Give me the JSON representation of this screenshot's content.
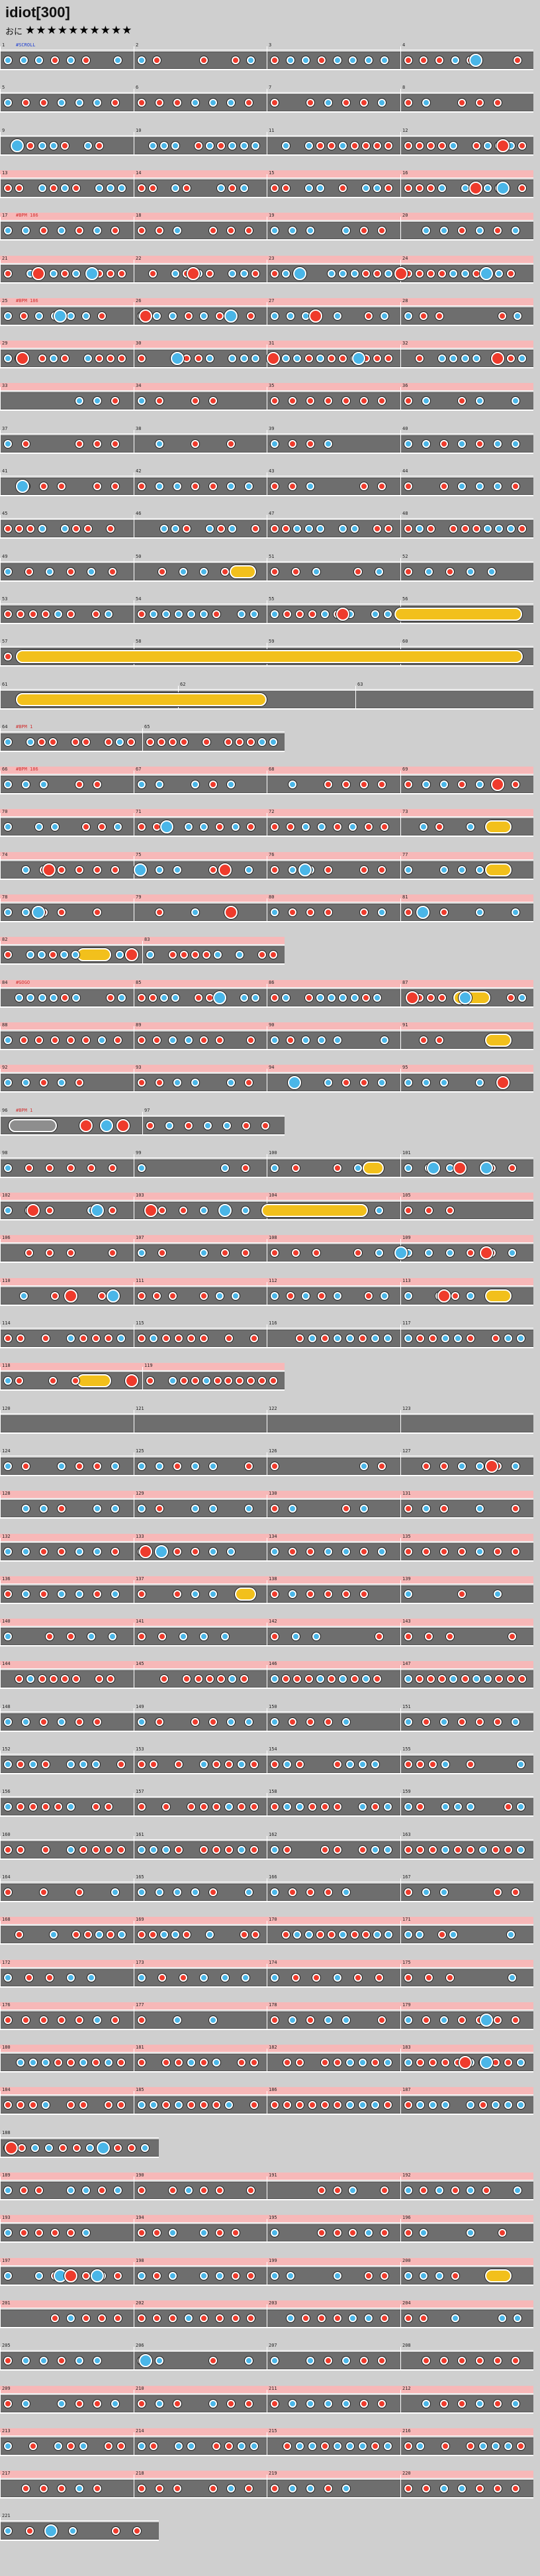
{
  "header": {
    "title": "idiot[300]",
    "difficulty_label": "おに",
    "stars": "★★★★★★★★★★"
  },
  "colors": {
    "background": "#cfcfcf",
    "lane": "#6e6e6e",
    "pink_band": "#f7b8b8",
    "don": "#ef3b2c",
    "ka": "#4ab6e8",
    "drumroll": "#f2c01c"
  },
  "icons": {
    "don_note": "red-circle",
    "ka_note": "blue-circle",
    "drumroll": "yellow-bar",
    "balloon": "grey-bar"
  },
  "chart_data": {
    "type": "taiko-score",
    "measures_per_full_row": 4,
    "rows": [
      {
        "measures": [
          1,
          2,
          3,
          4
        ],
        "pink": false,
        "annot": "#SCROLL",
        "annot_color": "blue",
        "big_at": [
          0.88
        ]
      },
      {
        "measures": [
          5,
          6,
          7,
          8
        ],
        "pink": false
      },
      {
        "measures": [
          9,
          10,
          11,
          12
        ],
        "pink": false,
        "big_at": [
          0.02,
          0.93
        ]
      },
      {
        "measures": [
          13,
          14,
          15,
          16
        ],
        "pink": true,
        "big_at": [
          0.88,
          0.93
        ]
      },
      {
        "measures": [
          17,
          18,
          19,
          20
        ],
        "pink": true,
        "annot": "#BPM 186"
      },
      {
        "measures": [
          21,
          22,
          23,
          24
        ],
        "pink": true,
        "big_at": [
          0.06,
          0.16,
          0.35,
          0.55,
          0.74,
          0.9
        ]
      },
      {
        "measures": [
          25,
          26,
          27,
          28
        ],
        "pink": true,
        "annot": "#BPM 186",
        "big_at": [
          0.1,
          0.26,
          0.42,
          0.58
        ]
      },
      {
        "measures": [
          29,
          30,
          31,
          32
        ],
        "pink": true,
        "big_at": [
          0.03,
          0.32,
          0.5,
          0.66,
          0.92
        ]
      },
      {
        "measures": [
          33,
          34,
          35,
          36
        ],
        "pink": true
      },
      {
        "measures": [
          37,
          38,
          39,
          40
        ],
        "pink": false
      },
      {
        "measures": [
          41,
          42,
          43,
          44
        ],
        "pink": false,
        "big_at": [
          0.03
        ]
      },
      {
        "measures": [
          45,
          46,
          47,
          48
        ],
        "pink": false
      },
      {
        "measures": [
          49,
          50,
          51,
          52
        ],
        "pink": false,
        "rolls": [
          [
            0.43,
            0.48
          ]
        ]
      },
      {
        "measures": [
          53,
          54,
          55,
          56
        ],
        "pink": false,
        "big_at": [
          0.63
        ],
        "rolls": [
          [
            0.74,
            0.98
          ]
        ]
      },
      {
        "measures": [
          57,
          58,
          59,
          60
        ],
        "pink": false,
        "rolls": [
          [
            0.03,
            0.98
          ]
        ]
      },
      {
        "measures": [
          61,
          62,
          63
        ],
        "pink": false,
        "annot2": "#SCROLL",
        "rolls": [
          [
            0.03,
            0.5
          ]
        ],
        "empty": true
      },
      {
        "measures": [
          64,
          65
        ],
        "pink": false,
        "half": true,
        "annot": "#BPM 1"
      },
      {
        "measures": [
          66,
          67,
          68,
          69
        ],
        "pink": true,
        "annot": "#BPM 186",
        "big_at": [
          0.92
        ]
      },
      {
        "measures": [
          70,
          71,
          72,
          73
        ],
        "pink": true,
        "big_at": [
          0.3
        ],
        "rolls": [
          [
            0.91,
            0.96
          ]
        ]
      },
      {
        "measures": [
          74,
          75,
          76,
          77
        ],
        "pink": true,
        "big_at": [
          0.08,
          0.25,
          0.41,
          0.56
        ],
        "rolls": [
          [
            0.91,
            0.96
          ]
        ]
      },
      {
        "measures": [
          78,
          79,
          80,
          81
        ],
        "pink": true,
        "big_at": [
          0.06,
          0.42,
          0.78
        ]
      },
      {
        "measures": [
          82,
          83
        ],
        "pink": true,
        "half": true,
        "big_at": [
          0.44
        ],
        "rolls": [
          [
            0.27,
            0.39
          ]
        ]
      },
      {
        "measures": [
          84,
          85,
          86,
          87
        ],
        "pink": true,
        "annot": "#GOGO",
        "big_at": [
          0.4,
          0.76,
          0.86
        ],
        "rolls": [
          [
            0.85,
            0.92
          ]
        ]
      },
      {
        "measures": [
          88,
          89,
          90,
          91
        ],
        "pink": true,
        "rolls": [
          [
            0.91,
            0.96
          ]
        ]
      },
      {
        "measures": [
          92,
          93,
          94,
          95
        ],
        "pink": true,
        "big_at": [
          0.54,
          0.93
        ]
      },
      {
        "measures": [
          96,
          97
        ],
        "pink": false,
        "half": true,
        "annot": "#BPM 1",
        "rolls": [
          [
            0.03,
            0.2
          ]
        ],
        "balloon": [
          [
            0.03,
            0.2
          ]
        ],
        "big_at": [
          0.28,
          0.35,
          0.41
        ]
      },
      {
        "measures": [
          98,
          99,
          100,
          101
        ],
        "pink": false,
        "rolls": [
          [
            0.68,
            0.72
          ]
        ],
        "big_at": [
          0.8,
          0.85,
          0.9
        ]
      },
      {
        "measures": [
          102,
          103,
          104,
          105
        ],
        "pink": true,
        "big_at": [
          0.05,
          0.17,
          0.27,
          0.41
        ],
        "rolls": [
          [
            0.49,
            0.69
          ]
        ]
      },
      {
        "measures": [
          106,
          107,
          108,
          109
        ],
        "pink": true,
        "big_at": [
          0.74,
          0.9
        ]
      },
      {
        "measures": [
          110,
          111,
          112,
          113
        ],
        "pink": true,
        "big_at": [
          0.12,
          0.2,
          0.82
        ],
        "rolls": [
          [
            0.91,
            0.96
          ]
        ]
      },
      {
        "measures": [
          114,
          115,
          116,
          117
        ],
        "pink": false
      },
      {
        "measures": [
          118,
          119
        ],
        "pink": true,
        "half": true,
        "rolls": [
          [
            0.27,
            0.39
          ]
        ],
        "big_at": [
          0.44
        ]
      },
      {
        "measures": [
          120,
          121,
          122,
          123
        ],
        "pink": false,
        "empty": true
      },
      {
        "measures": [
          124,
          125,
          126,
          127
        ],
        "pink": false,
        "big_at": [
          0.91
        ]
      },
      {
        "measures": [
          128,
          129,
          130,
          131
        ],
        "pink": true
      },
      {
        "measures": [
          132,
          133,
          134,
          135
        ],
        "pink": true,
        "big_at": [
          0.26,
          0.29
        ]
      },
      {
        "measures": [
          136,
          137,
          138,
          139
        ],
        "pink": true,
        "rolls": [
          [
            0.44,
            0.48
          ]
        ]
      },
      {
        "measures": [
          140,
          141,
          142,
          143
        ],
        "pink": true
      },
      {
        "measures": [
          144,
          145,
          146,
          147
        ],
        "pink": true
      },
      {
        "measures": [
          148,
          149,
          150,
          151
        ],
        "pink": false
      },
      {
        "measures": [
          152,
          153,
          154,
          155
        ],
        "pink": false
      },
      {
        "measures": [
          156,
          157,
          158,
          159
        ],
        "pink": false
      },
      {
        "measures": [
          160,
          161,
          162,
          163
        ],
        "pink": false
      },
      {
        "measures": [
          164,
          165,
          166,
          167
        ],
        "pink": false
      },
      {
        "measures": [
          168,
          169,
          170,
          171
        ],
        "pink": true
      },
      {
        "measures": [
          172,
          173,
          174,
          175
        ],
        "pink": true
      },
      {
        "measures": [
          176,
          177,
          178,
          179
        ],
        "pink": true,
        "big_at": [
          0.9
        ]
      },
      {
        "measures": [
          180,
          181,
          182,
          183
        ],
        "pink": true,
        "big_at": [
          0.86,
          0.9
        ]
      },
      {
        "measures": [
          184,
          185,
          186,
          187
        ],
        "pink": true
      },
      {
        "measures": [
          188
        ],
        "pink": false,
        "quarter": true,
        "big_at": [
          0.03,
          0.61
        ]
      },
      {
        "measures": [
          189,
          190,
          191,
          192
        ],
        "pink": true
      },
      {
        "measures": [
          193,
          194,
          195,
          196
        ],
        "pink": true
      },
      {
        "measures": [
          197,
          198,
          199,
          200
        ],
        "pink": true,
        "big_at": [
          0.1,
          0.12,
          0.17
        ],
        "rolls": [
          [
            0.91,
            0.96
          ]
        ]
      },
      {
        "measures": [
          201,
          202,
          203,
          204
        ],
        "pink": true
      },
      {
        "measures": [
          205,
          206,
          207,
          208
        ],
        "pink": false,
        "big_at": [
          0.26
        ]
      },
      {
        "measures": [
          209,
          210,
          211,
          212
        ],
        "pink": true
      },
      {
        "measures": [
          213,
          214,
          215,
          216
        ],
        "pink": true
      },
      {
        "measures": [
          217,
          218,
          219,
          220
        ],
        "pink": true
      },
      {
        "measures": [
          221
        ],
        "pink": false,
        "quarter": true,
        "big_at": [
          0.28
        ]
      }
    ]
  }
}
